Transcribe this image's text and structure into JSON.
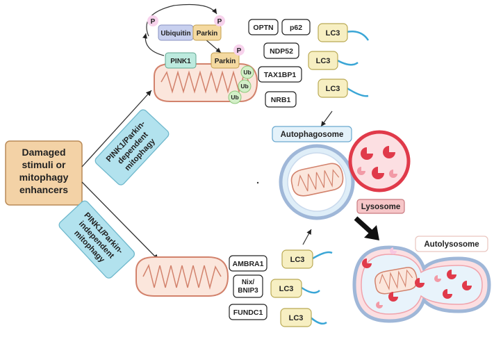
{
  "start_box": {
    "lines": [
      "Damaged",
      "stimuli or",
      "mitophagy",
      "enhancers"
    ]
  },
  "pathways": {
    "dependent": {
      "lines": [
        "PINK1/Parkin-",
        "dependent",
        "mitophagy"
      ]
    },
    "independent": {
      "lines": [
        "PINK1/Parkin-",
        "independent",
        "mitophagy"
      ]
    }
  },
  "top_proteins": {
    "phospho": "P",
    "ubiquitin": "Ubiquitin",
    "parkin": "Parkin",
    "pink1": "PINK1",
    "ub": "Ub"
  },
  "receptors_top": [
    "OPTN",
    "p62",
    "NDP52",
    "TAX1BP1",
    "NRB1"
  ],
  "receptors_bottom": [
    "AMBRA1",
    "Nix/\nBNIP3",
    "FUNDC1"
  ],
  "lc3_label": "LC3",
  "labels": {
    "autophagosome": "Autophagosome",
    "lysosome": "Lysosome",
    "autolysosome": "Autolysosome"
  },
  "colors": {
    "start_fill": "#f3d2a6",
    "start_stroke": "#b98a56",
    "pathway_fill": "#b2e2ee",
    "pathway_stroke": "#6fb8cc",
    "lc3_fill": "#f7efc2",
    "lc3_stroke": "#b9a954",
    "tail": "#3aa6d6",
    "mito_fill": "#fbe6dc",
    "mito_stroke": "#d2826c",
    "lysosome_red": "#e03a4a",
    "lysosome_fill": "#fcdfe2",
    "autophagosome_fill": "#dfeef8",
    "membrane": "#9fb7d8",
    "ub_fill": "#d3efc8",
    "ub_stroke": "#8cc67a",
    "p_fill": "#f7d2ec",
    "ubiquitin_fill": "#c8d0ef",
    "parkin_fill": "#f4d9a0",
    "pink1_fill": "#bdeade"
  }
}
